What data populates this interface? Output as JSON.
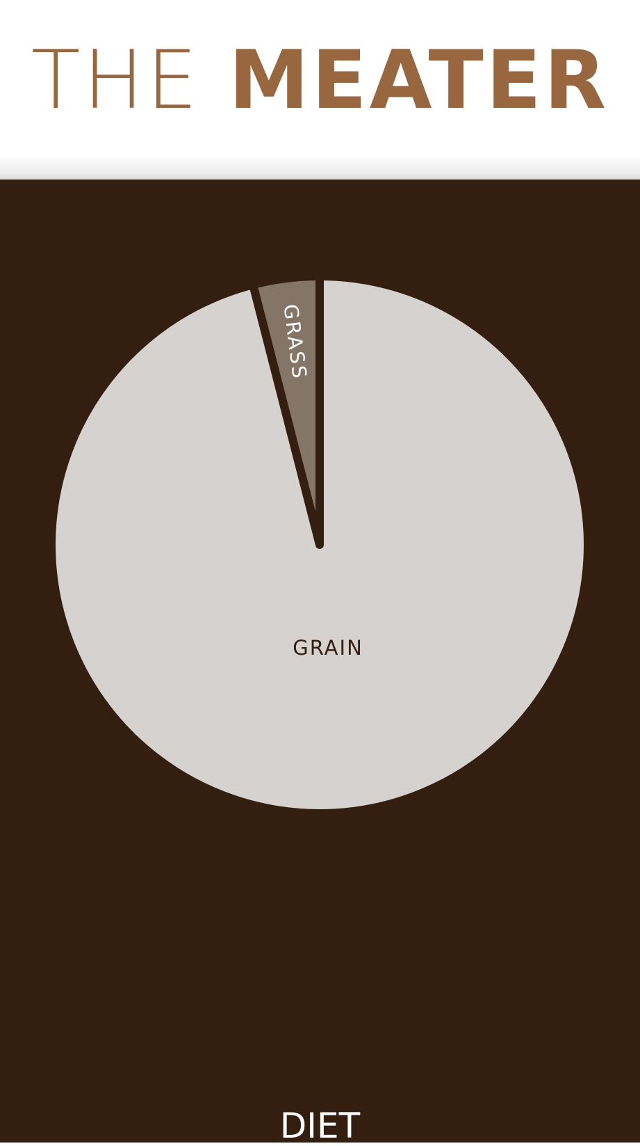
{
  "header": {
    "title_light": "THE",
    "title_bold": "MEATER",
    "title_color": "#98673f"
  },
  "panel": {
    "background_color": "#341e10",
    "label": "DIET"
  },
  "chart_data": {
    "type": "pie",
    "slices": [
      {
        "label": "GRASS",
        "value": 4,
        "color": "#857567",
        "label_color": "#ffffff"
      },
      {
        "label": "GRAIN",
        "value": 96,
        "color": "#d6d2cf",
        "label_color": "#341e10"
      }
    ]
  }
}
